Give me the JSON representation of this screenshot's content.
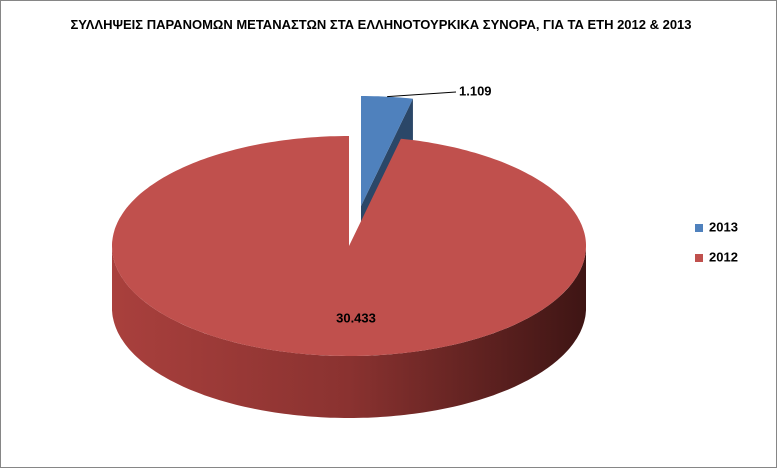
{
  "chart_data": {
    "type": "pie",
    "title": "ΣΥΛΛΗΨΕΙΣ ΠΑΡΑΝΟΜΩΝ ΜΕΤΑΝΑΣΤΩΝ ΣΤΑ ΕΛΛΗΝΟΤΟΥΡΚΙΚΑ ΣΥΝΟΡΑ, ΓΙΑ ΤΑ ΕΤΗ 2012 & 2013",
    "categories": [
      "2013",
      "2012"
    ],
    "values": [
      1109,
      30433
    ],
    "value_labels": [
      "1.109",
      "30.433"
    ],
    "colors": [
      "#4f81bd",
      "#c0504d"
    ],
    "legend": "right"
  }
}
